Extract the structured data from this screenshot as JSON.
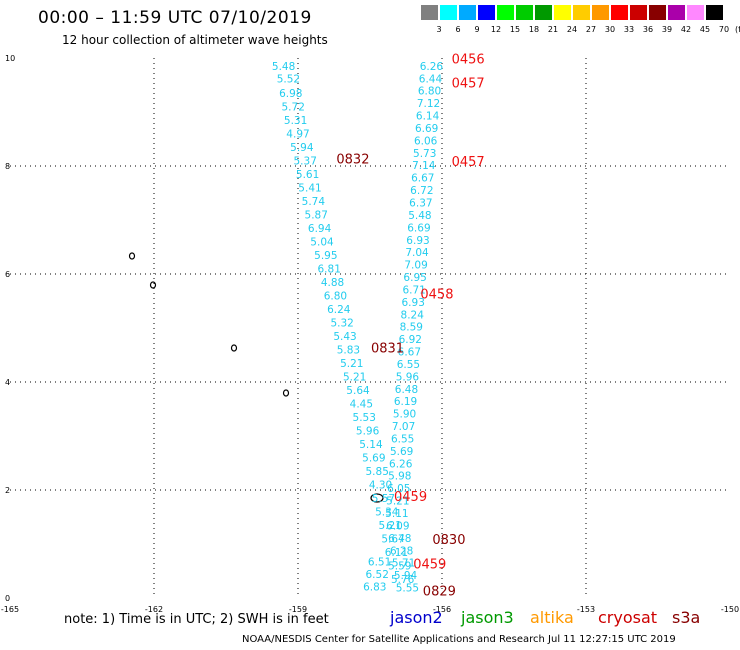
{
  "header": {
    "title": "00:00 – 11:59 UTC 07/10/2019",
    "subtitle": "12 hour collection of altimeter wave heights"
  },
  "legend": {
    "colors": [
      "#808080",
      "#00ffff",
      "#00aaff",
      "#0000ff",
      "#00ff00",
      "#00cc00",
      "#009900",
      "#ffff00",
      "#ffcc00",
      "#ff9900",
      "#ff0000",
      "#cc0000",
      "#880000",
      "#aa00aa",
      "#ff88ff",
      "#000000"
    ],
    "labels": [
      "3",
      "6",
      "9",
      "12",
      "15",
      "18",
      "21",
      "24",
      "27",
      "30",
      "33",
      "36",
      "39",
      "42",
      "45",
      "70"
    ],
    "unit": "(ft)"
  },
  "axes": {
    "x_ticks": [
      "-165",
      "-162",
      "-159",
      "-156",
      "-153",
      "-150"
    ],
    "y_ticks": [
      "0",
      "2",
      "4",
      "6",
      "8",
      "10"
    ],
    "xlim": [
      -165,
      -150
    ],
    "ylim": [
      0,
      10
    ]
  },
  "tracks": {
    "left": {
      "color": "#22ccee",
      "points": [
        {
          "lon": -159.3,
          "lat": 9.78,
          "v": "5.48"
        },
        {
          "lon": -159.2,
          "lat": 9.55,
          "v": "5.52"
        },
        {
          "lon": -159.15,
          "lat": 9.28,
          "v": "6.98"
        },
        {
          "lon": -159.1,
          "lat": 9.03,
          "v": "5.72"
        },
        {
          "lon": -159.05,
          "lat": 8.78,
          "v": "5.31"
        },
        {
          "lon": -159.0,
          "lat": 8.53,
          "v": "4.97"
        },
        {
          "lon": -158.92,
          "lat": 8.28,
          "v": "5.94"
        },
        {
          "lon": -158.85,
          "lat": 8.03,
          "v": "5.37"
        },
        {
          "lon": -158.8,
          "lat": 7.78,
          "v": "5.61"
        },
        {
          "lon": -158.75,
          "lat": 7.53,
          "v": "5.41"
        },
        {
          "lon": -158.68,
          "lat": 7.28,
          "v": "5.74"
        },
        {
          "lon": -158.62,
          "lat": 7.03,
          "v": "5.87"
        },
        {
          "lon": -158.55,
          "lat": 6.78,
          "v": "6.94"
        },
        {
          "lon": -158.5,
          "lat": 6.53,
          "v": "5.04"
        },
        {
          "lon": -158.42,
          "lat": 6.28,
          "v": "5.95"
        },
        {
          "lon": -158.35,
          "lat": 6.03,
          "v": "6.81"
        },
        {
          "lon": -158.28,
          "lat": 5.78,
          "v": "4.88"
        },
        {
          "lon": -158.22,
          "lat": 5.53,
          "v": "6.80"
        },
        {
          "lon": -158.15,
          "lat": 5.28,
          "v": "6.24"
        },
        {
          "lon": -158.08,
          "lat": 5.03,
          "v": "5.32"
        },
        {
          "lon": -158.02,
          "lat": 4.78,
          "v": "5.43"
        },
        {
          "lon": -157.95,
          "lat": 4.53,
          "v": "5.83"
        },
        {
          "lon": -157.88,
          "lat": 4.28,
          "v": "5.21"
        },
        {
          "lon": -157.82,
          "lat": 4.03,
          "v": "5.21"
        },
        {
          "lon": -157.75,
          "lat": 3.78,
          "v": "5.64"
        },
        {
          "lon": -157.68,
          "lat": 3.53,
          "v": "4.45"
        },
        {
          "lon": -157.62,
          "lat": 3.28,
          "v": "5.53"
        },
        {
          "lon": -157.55,
          "lat": 3.03,
          "v": "5.96"
        },
        {
          "lon": -157.48,
          "lat": 2.78,
          "v": "5.14"
        },
        {
          "lon": -157.42,
          "lat": 2.53,
          "v": "5.69"
        },
        {
          "lon": -157.35,
          "lat": 2.28,
          "v": "5.85"
        },
        {
          "lon": -157.28,
          "lat": 2.03,
          "v": "4.30"
        },
        {
          "lon": -157.22,
          "lat": 1.78,
          "v": "5.57"
        },
        {
          "lon": -157.15,
          "lat": 1.53,
          "v": "5.34"
        },
        {
          "lon": -157.08,
          "lat": 1.28,
          "v": "5.21"
        },
        {
          "lon": -157.02,
          "lat": 1.03,
          "v": "5.67"
        },
        {
          "lon": -156.95,
          "lat": 0.78,
          "v": "6.11"
        },
        {
          "lon": -156.88,
          "lat": 0.53,
          "v": "5.59"
        },
        {
          "lon": -156.82,
          "lat": 0.28,
          "v": "5.76"
        }
      ]
    },
    "right": {
      "color": "#22ccee",
      "points": [
        {
          "lon": -156.22,
          "lat": 9.78,
          "v": "6.26"
        },
        {
          "lon": -156.24,
          "lat": 9.55,
          "v": "6.44"
        },
        {
          "lon": -156.26,
          "lat": 9.32,
          "v": "6.80"
        },
        {
          "lon": -156.28,
          "lat": 9.09,
          "v": "7.12"
        },
        {
          "lon": -156.3,
          "lat": 8.86,
          "v": "6.14"
        },
        {
          "lon": -156.32,
          "lat": 8.63,
          "v": "6.69"
        },
        {
          "lon": -156.34,
          "lat": 8.4,
          "v": "6.06"
        },
        {
          "lon": -156.36,
          "lat": 8.17,
          "v": "5.73"
        },
        {
          "lon": -156.38,
          "lat": 7.94,
          "v": "7.14"
        },
        {
          "lon": -156.4,
          "lat": 7.71,
          "v": "6.67"
        },
        {
          "lon": -156.42,
          "lat": 7.48,
          "v": "6.72"
        },
        {
          "lon": -156.44,
          "lat": 7.25,
          "v": "6.37"
        },
        {
          "lon": -156.46,
          "lat": 7.02,
          "v": "5.48"
        },
        {
          "lon": -156.48,
          "lat": 6.79,
          "v": "6.69"
        },
        {
          "lon": -156.5,
          "lat": 6.56,
          "v": "6.93"
        },
        {
          "lon": -156.52,
          "lat": 6.33,
          "v": "7.04"
        },
        {
          "lon": -156.54,
          "lat": 6.1,
          "v": "7.09"
        },
        {
          "lon": -156.56,
          "lat": 5.87,
          "v": "6.95"
        },
        {
          "lon": -156.58,
          "lat": 5.64,
          "v": "6.71"
        },
        {
          "lon": -156.6,
          "lat": 5.41,
          "v": "6.93"
        },
        {
          "lon": -156.62,
          "lat": 5.18,
          "v": "8.24"
        },
        {
          "lon": -156.64,
          "lat": 4.95,
          "v": "8.59"
        },
        {
          "lon": -156.66,
          "lat": 4.72,
          "v": "6.92"
        },
        {
          "lon": -156.68,
          "lat": 4.49,
          "v": "6.67"
        },
        {
          "lon": -156.7,
          "lat": 4.26,
          "v": "6.55"
        },
        {
          "lon": -156.72,
          "lat": 4.03,
          "v": "5.96"
        },
        {
          "lon": -156.74,
          "lat": 3.8,
          "v": "6.48"
        },
        {
          "lon": -156.76,
          "lat": 3.57,
          "v": "6.19"
        },
        {
          "lon": -156.78,
          "lat": 3.34,
          "v": "5.90"
        },
        {
          "lon": -156.8,
          "lat": 3.11,
          "v": "7.07"
        },
        {
          "lon": -156.82,
          "lat": 2.88,
          "v": "6.55"
        },
        {
          "lon": -156.84,
          "lat": 2.65,
          "v": "5.69"
        },
        {
          "lon": -156.86,
          "lat": 2.42,
          "v": "6.26"
        },
        {
          "lon": -156.88,
          "lat": 2.19,
          "v": "5.98"
        },
        {
          "lon": -156.9,
          "lat": 1.96,
          "v": "6.05"
        },
        {
          "lon": -156.92,
          "lat": 1.73,
          "v": "5.21"
        },
        {
          "lon": -156.94,
          "lat": 1.5,
          "v": "5.11"
        },
        {
          "lon": -156.92,
          "lat": 1.27,
          "v": "6.09"
        },
        {
          "lon": -156.88,
          "lat": 1.04,
          "v": "6.48"
        },
        {
          "lon": -156.84,
          "lat": 0.81,
          "v": "6.28"
        },
        {
          "lon": -156.8,
          "lat": 0.58,
          "v": "5.71"
        },
        {
          "lon": -156.76,
          "lat": 0.35,
          "v": "5.94"
        },
        {
          "lon": -156.72,
          "lat": 0.12,
          "v": "5.55"
        }
      ]
    },
    "bottom": {
      "color": "#22ccee",
      "points": [
        {
          "lon": -157.3,
          "lat": 0.6,
          "v": "6.51"
        },
        {
          "lon": -157.35,
          "lat": 0.37,
          "v": "6.52"
        },
        {
          "lon": -157.4,
          "lat": 0.14,
          "v": "6.83"
        }
      ]
    }
  },
  "time_labels": [
    {
      "lon": -155.8,
      "lat": 9.9,
      "text": "0456",
      "color": "#ee1111"
    },
    {
      "lon": -155.8,
      "lat": 9.45,
      "text": "0457",
      "color": "#ee1111"
    },
    {
      "lon": -155.8,
      "lat": 8.0,
      "text": "0457",
      "color": "#ee1111"
    },
    {
      "lon": -158.2,
      "lat": 8.05,
      "text": "0832",
      "color": "#880000"
    },
    {
      "lon": -156.45,
      "lat": 5.55,
      "text": "0458",
      "color": "#ee1111"
    },
    {
      "lon": -157.48,
      "lat": 4.55,
      "text": "0831",
      "color": "#880000"
    },
    {
      "lon": -157.0,
      "lat": 1.8,
      "text": "0459",
      "color": "#ee1111"
    },
    {
      "lon": -156.2,
      "lat": 1.0,
      "text": "0830",
      "color": "#880000"
    },
    {
      "lon": -156.6,
      "lat": 0.55,
      "text": "0459",
      "color": "#ee1111"
    },
    {
      "lon": -156.4,
      "lat": 0.05,
      "text": "0829",
      "color": "#880000"
    }
  ],
  "footer": {
    "note": "note:  1) Time is in UTC; 2) SWH is in feet",
    "satellites": [
      {
        "name": "jason2",
        "color": "#0000cc"
      },
      {
        "name": "jason3",
        "color": "#009900"
      },
      {
        "name": "altika",
        "color": "#ff9900"
      },
      {
        "name": "cryosat",
        "color": "#cc0000"
      },
      {
        "name": "s3a",
        "color": "#880000"
      }
    ],
    "credit": "NOAA/NESDIS Center for Satellite Applications and Research    Jul 11 12:27:15 UTC 2019"
  }
}
